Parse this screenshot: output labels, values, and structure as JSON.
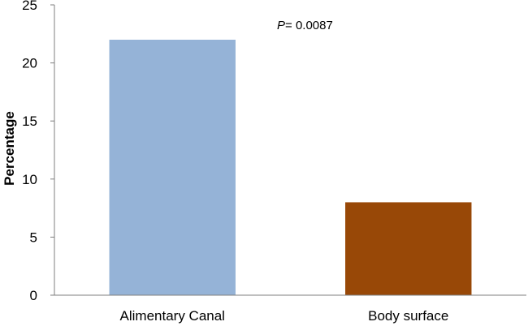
{
  "chart_data": {
    "type": "bar",
    "title": "",
    "xlabel": "",
    "ylabel": "Percentage",
    "categories": [
      "Alimentary Canal",
      "Body surface"
    ],
    "values": [
      22,
      8
    ],
    "bar_colors": [
      "#95B3D7",
      "#984807"
    ],
    "ylim": [
      0,
      25
    ],
    "yticks": [
      0,
      5,
      10,
      15,
      20,
      25
    ],
    "grid": false,
    "legend": "none",
    "annotation": {
      "p_label": "P",
      "p_value_text": "= 0.0087"
    }
  }
}
